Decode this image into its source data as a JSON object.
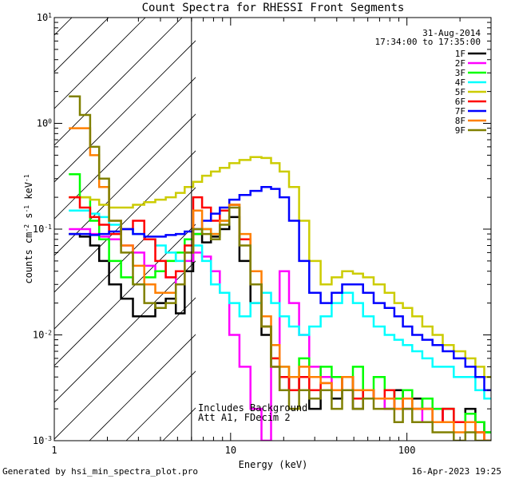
{
  "chart_data": {
    "type": "line",
    "title": "Count Spectra for RHESSI Front Segments",
    "xlabel": "Energy (keV)",
    "ylabel_parts": [
      "counts cm",
      "-2",
      " s",
      "-1",
      " keV",
      "-1"
    ],
    "x_scale": "log",
    "y_scale": "log",
    "xlim": [
      1,
      300
    ],
    "ylim": [
      0.001,
      10
    ],
    "x_ticks": [
      {
        "value": 1,
        "label": "1"
      },
      {
        "value": 10,
        "label": "10"
      },
      {
        "value": 100,
        "label": "100"
      }
    ],
    "y_ticks": [
      {
        "value": 0.001,
        "mantissa": "10",
        "exp": "-3"
      },
      {
        "value": 0.01,
        "mantissa": "10",
        "exp": "-2"
      },
      {
        "value": 0.1,
        "mantissa": "10",
        "exp": "-1"
      },
      {
        "value": 1,
        "mantissa": "10",
        "exp": "0"
      },
      {
        "value": 10,
        "mantissa": "10",
        "exp": "1"
      }
    ],
    "date": "31-Aug-2014",
    "time_range": "17:34:00 to 17:35:00",
    "hatched_region": [
      1,
      6
    ],
    "annotations": [
      "Includes Background",
      "Att A1, FDecim 2"
    ],
    "footer_left": "Generated by hsi_min_spectra_plot.pro",
    "footer_right": "16-Apr-2023 19:25",
    "series": [
      {
        "name": "1F",
        "color": "#000000",
        "x": [
          1.3,
          1.5,
          1.7,
          1.9,
          2.2,
          2.6,
          3.0,
          3.5,
          4.0,
          4.6,
          5.2,
          5.8,
          6.5,
          7.3,
          8.2,
          9.2,
          10.5,
          12,
          14,
          16,
          18,
          20,
          23,
          26,
          30,
          35,
          40,
          46,
          53,
          60,
          70,
          80,
          90,
          100,
          115,
          130,
          150,
          170,
          200,
          230,
          260,
          290
        ],
        "y": [
          0.09,
          0.085,
          0.07,
          0.05,
          0.03,
          0.022,
          0.015,
          0.015,
          0.02,
          0.022,
          0.016,
          0.04,
          0.09,
          0.075,
          0.085,
          0.1,
          0.13,
          0.05,
          0.02,
          0.01,
          0.005,
          0.003,
          0.004,
          0.003,
          0.002,
          0.003,
          0.0025,
          0.004,
          0.002,
          0.003,
          0.0025,
          0.002,
          0.003,
          0.002,
          0.0025,
          0.002,
          0.0015,
          0.002,
          0.0015,
          0.002,
          0.0015,
          0.0012
        ]
      },
      {
        "name": "2F",
        "color": "#ff00ff",
        "x": [
          1.3,
          1.5,
          1.7,
          1.9,
          2.2,
          2.6,
          3.0,
          3.5,
          4.0,
          4.6,
          5.2,
          5.8,
          6.5,
          7.3,
          8.2,
          9.2,
          10.5,
          12,
          14,
          16,
          18,
          20,
          23,
          26,
          30,
          35,
          40,
          46,
          53,
          60,
          70,
          80,
          90,
          100,
          115,
          130,
          150,
          170,
          200,
          230,
          260,
          290
        ],
        "y": [
          0.1,
          0.1,
          0.09,
          0.085,
          0.08,
          0.07,
          0.06,
          0.045,
          0.04,
          0.035,
          0.03,
          0.05,
          0.06,
          0.055,
          0.04,
          0.025,
          0.01,
          0.005,
          0.002,
          0.001,
          0.005,
          0.04,
          0.02,
          0.01,
          0.005,
          0.004,
          0.003,
          0.004,
          0.003,
          0.003,
          0.0025,
          0.002,
          0.0025,
          0.002,
          0.002,
          0.0015,
          0.002,
          0.0015,
          0.0015,
          0.0015,
          0.0012,
          0.001
        ]
      },
      {
        "name": "3F",
        "color": "#00ff00",
        "x": [
          1.3,
          1.5,
          1.7,
          1.9,
          2.2,
          2.6,
          3.0,
          3.5,
          4.0,
          4.6,
          5.2,
          5.8,
          6.5,
          7.3,
          8.2,
          9.2,
          10.5,
          12,
          14,
          16,
          18,
          20,
          23,
          26,
          30,
          35,
          40,
          46,
          53,
          60,
          70,
          80,
          90,
          100,
          115,
          130,
          150,
          170,
          200,
          230,
          260,
          290
        ],
        "y": [
          0.33,
          0.2,
          0.12,
          0.08,
          0.05,
          0.035,
          0.03,
          0.035,
          0.04,
          0.05,
          0.06,
          0.08,
          0.09,
          0.1,
          0.09,
          0.12,
          0.17,
          0.08,
          0.03,
          0.012,
          0.006,
          0.005,
          0.004,
          0.006,
          0.004,
          0.005,
          0.004,
          0.003,
          0.005,
          0.003,
          0.004,
          0.003,
          0.0025,
          0.003,
          0.002,
          0.0025,
          0.002,
          0.002,
          0.0015,
          0.0018,
          0.0015,
          0.0012
        ]
      },
      {
        "name": "4F",
        "color": "#00ffff",
        "x": [
          1.3,
          1.5,
          1.7,
          1.9,
          2.2,
          2.6,
          3.0,
          3.5,
          4.0,
          4.6,
          5.2,
          5.8,
          6.5,
          7.3,
          8.2,
          9.2,
          10.5,
          12,
          14,
          16,
          18,
          20,
          23,
          26,
          30,
          35,
          40,
          46,
          53,
          60,
          70,
          80,
          90,
          100,
          115,
          130,
          150,
          170,
          200,
          230,
          260,
          290
        ],
        "y": [
          0.15,
          0.15,
          0.14,
          0.13,
          0.11,
          0.1,
          0.09,
          0.08,
          0.07,
          0.06,
          0.05,
          0.06,
          0.07,
          0.05,
          0.03,
          0.025,
          0.02,
          0.015,
          0.02,
          0.025,
          0.02,
          0.015,
          0.012,
          0.01,
          0.012,
          0.015,
          0.02,
          0.025,
          0.02,
          0.015,
          0.012,
          0.01,
          0.009,
          0.008,
          0.007,
          0.006,
          0.005,
          0.005,
          0.004,
          0.004,
          0.003,
          0.0025
        ]
      },
      {
        "name": "5F",
        "color": "#cccc00",
        "x": [
          1.3,
          1.5,
          1.7,
          1.9,
          2.2,
          2.6,
          3.0,
          3.5,
          4.0,
          4.6,
          5.2,
          5.8,
          6.5,
          7.3,
          8.2,
          9.2,
          10.5,
          12,
          14,
          16,
          18,
          20,
          23,
          26,
          30,
          35,
          40,
          46,
          53,
          60,
          70,
          80,
          90,
          100,
          115,
          130,
          150,
          170,
          200,
          230,
          260,
          290
        ],
        "y": [
          0.2,
          0.2,
          0.19,
          0.17,
          0.16,
          0.16,
          0.17,
          0.18,
          0.19,
          0.2,
          0.22,
          0.25,
          0.28,
          0.32,
          0.35,
          0.38,
          0.42,
          0.45,
          0.48,
          0.47,
          0.42,
          0.35,
          0.25,
          0.12,
          0.05,
          0.03,
          0.035,
          0.04,
          0.038,
          0.035,
          0.03,
          0.025,
          0.02,
          0.018,
          0.015,
          0.012,
          0.01,
          0.008,
          0.007,
          0.006,
          0.005,
          0.004
        ]
      },
      {
        "name": "6F",
        "color": "#ff0000",
        "x": [
          1.3,
          1.5,
          1.7,
          1.9,
          2.2,
          2.6,
          3.0,
          3.5,
          4.0,
          4.6,
          5.2,
          5.8,
          6.5,
          7.3,
          8.2,
          9.2,
          10.5,
          12,
          14,
          16,
          18,
          20,
          23,
          26,
          30,
          35,
          40,
          46,
          53,
          60,
          70,
          80,
          90,
          100,
          115,
          130,
          150,
          170,
          200,
          230,
          260,
          290
        ],
        "y": [
          0.2,
          0.16,
          0.13,
          0.11,
          0.09,
          0.1,
          0.12,
          0.08,
          0.05,
          0.035,
          0.04,
          0.07,
          0.2,
          0.16,
          0.12,
          0.15,
          0.17,
          0.08,
          0.03,
          0.012,
          0.006,
          0.004,
          0.003,
          0.004,
          0.003,
          0.0035,
          0.003,
          0.004,
          0.0025,
          0.003,
          0.0025,
          0.003,
          0.002,
          0.0025,
          0.002,
          0.002,
          0.0015,
          0.002,
          0.0015,
          0.0015,
          0.0012,
          0.001
        ]
      },
      {
        "name": "7F",
        "color": "#0000ff",
        "x": [
          1.3,
          1.5,
          1.7,
          1.9,
          2.2,
          2.6,
          3.0,
          3.5,
          4.0,
          4.6,
          5.2,
          5.8,
          6.5,
          7.3,
          8.2,
          9.2,
          10.5,
          12,
          14,
          16,
          18,
          20,
          23,
          26,
          30,
          35,
          40,
          46,
          53,
          60,
          70,
          80,
          90,
          100,
          115,
          130,
          150,
          170,
          200,
          230,
          260,
          290
        ],
        "y": [
          0.09,
          0.09,
          0.088,
          0.09,
          0.095,
          0.1,
          0.09,
          0.085,
          0.085,
          0.088,
          0.09,
          0.095,
          0.1,
          0.12,
          0.14,
          0.16,
          0.19,
          0.21,
          0.23,
          0.25,
          0.24,
          0.2,
          0.12,
          0.05,
          0.025,
          0.02,
          0.025,
          0.03,
          0.03,
          0.025,
          0.02,
          0.018,
          0.015,
          0.012,
          0.01,
          0.009,
          0.008,
          0.007,
          0.006,
          0.005,
          0.004,
          0.003
        ]
      },
      {
        "name": "8F",
        "color": "#ff7f00",
        "x": [
          1.3,
          1.5,
          1.7,
          1.9,
          2.2,
          2.6,
          3.0,
          3.5,
          4.0,
          4.6,
          5.2,
          5.8,
          6.5,
          7.3,
          8.2,
          9.2,
          10.5,
          12,
          14,
          16,
          18,
          20,
          23,
          26,
          30,
          35,
          40,
          46,
          53,
          60,
          70,
          80,
          90,
          100,
          115,
          130,
          150,
          170,
          200,
          230,
          260,
          290
        ],
        "y": [
          0.9,
          0.9,
          0.5,
          0.25,
          0.12,
          0.07,
          0.045,
          0.03,
          0.025,
          0.025,
          0.03,
          0.06,
          0.15,
          0.1,
          0.09,
          0.12,
          0.17,
          0.09,
          0.04,
          0.015,
          0.008,
          0.005,
          0.004,
          0.005,
          0.004,
          0.0035,
          0.003,
          0.004,
          0.003,
          0.003,
          0.0025,
          0.0025,
          0.002,
          0.0025,
          0.002,
          0.002,
          0.0015,
          0.0015,
          0.0012,
          0.0015,
          0.0012,
          0.001
        ]
      },
      {
        "name": "9F",
        "color": "#808000",
        "x": [
          1.3,
          1.5,
          1.7,
          1.9,
          2.2,
          2.6,
          3.0,
          3.5,
          4.0,
          4.6,
          5.2,
          5.8,
          6.5,
          7.3,
          8.2,
          9.2,
          10.5,
          12,
          14,
          16,
          18,
          20,
          23,
          26,
          30,
          35,
          40,
          46,
          53,
          60,
          70,
          80,
          90,
          100,
          115,
          130,
          150,
          170,
          200,
          230,
          260,
          290
        ],
        "y": [
          1.8,
          1.2,
          0.6,
          0.3,
          0.12,
          0.06,
          0.03,
          0.02,
          0.018,
          0.02,
          0.03,
          0.06,
          0.1,
          0.09,
          0.08,
          0.11,
          0.16,
          0.07,
          0.03,
          0.012,
          0.005,
          0.003,
          0.002,
          0.003,
          0.0025,
          0.003,
          0.002,
          0.003,
          0.002,
          0.0025,
          0.002,
          0.002,
          0.0015,
          0.002,
          0.0015,
          0.0015,
          0.0012,
          0.0012,
          0.001,
          0.0012,
          0.001,
          0.001
        ]
      }
    ]
  }
}
